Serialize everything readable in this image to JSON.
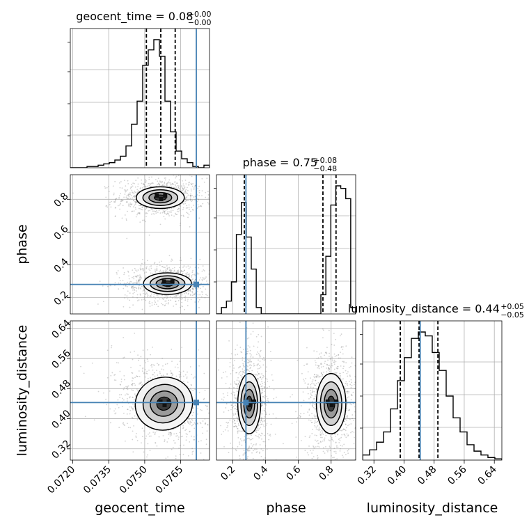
{
  "chart_data": {
    "type": "corner",
    "parameters": [
      "geocent_time",
      "phase",
      "luminosity_distance"
    ],
    "truths": {
      "geocent_time": 0.07715,
      "phase": 0.28,
      "luminosity_distance": 0.443
    },
    "colors": {
      "truth": "#4682b4",
      "hist": "#000000",
      "grid": "#b0b0b0",
      "scatter": "#808080"
    },
    "titles": [
      {
        "param": "geocent_time",
        "text": "geocent_time = 0.08",
        "plus": "+0.00",
        "minus": "−0.00"
      },
      {
        "param": "phase",
        "text": "phase = 0.75",
        "plus": "+0.08",
        "minus": "−0.48"
      },
      {
        "param": "luminosity_distance",
        "text": "luminosity_distance = 0.44",
        "plus": "+0.05",
        "minus": "−0.05"
      }
    ],
    "axes": {
      "geocent_time": {
        "label": "geocent_time",
        "range": [
          0.0719,
          0.0777
        ],
        "ticks": [
          0.072,
          0.0735,
          0.075,
          0.0765
        ],
        "tick_labels": [
          "0.0720",
          "0.0735",
          "0.0750",
          "0.0765"
        ]
      },
      "phase": {
        "label": "phase",
        "range": [
          0.1,
          0.95
        ],
        "ticks": [
          0.2,
          0.4,
          0.6,
          0.8
        ],
        "tick_labels": [
          "0.2",
          "0.4",
          "0.6",
          "0.8"
        ]
      },
      "luminosity_distance": {
        "label": "luminosity_distance",
        "range": [
          0.29,
          0.66
        ],
        "ticks": [
          0.32,
          0.4,
          0.48,
          0.56,
          0.64
        ],
        "tick_labels": [
          "0.32",
          "0.40",
          "0.48",
          "0.56",
          "0.64"
        ]
      }
    },
    "quantiles": {
      "geocent_time": [
        0.07507,
        0.07567,
        0.07627
      ],
      "phase": [
        0.27,
        0.75,
        0.83
      ],
      "luminosity_distance": [
        0.39,
        0.44,
        0.49
      ]
    },
    "histograms": {
      "geocent_time": [
        0,
        0,
        0,
        0.01,
        0.01,
        0.02,
        0.03,
        0.04,
        0.06,
        0.09,
        0.17,
        0.34,
        0.52,
        0.8,
        0.92,
        1.0,
        0.87,
        0.52,
        0.28,
        0.13,
        0.07,
        0.04,
        0.01,
        0,
        0.02
      ],
      "phase": [
        0,
        0.05,
        0.1,
        0.25,
        0.62,
        0.87,
        0.6,
        0.35,
        0.05,
        0,
        0,
        0,
        0,
        0,
        0,
        0,
        0,
        0,
        0,
        0,
        0,
        0.15,
        0.45,
        0.85,
        1.0,
        0.98,
        0.9,
        0.05
      ],
      "luminosity_distance": [
        0.04,
        0.08,
        0.14,
        0.22,
        0.4,
        0.62,
        0.8,
        0.95,
        1.0,
        0.97,
        0.84,
        0.7,
        0.5,
        0.33,
        0.22,
        0.12,
        0.07,
        0.04,
        0.02,
        0.01
      ]
    },
    "blobs": {
      "phase_vs_geocent_time": [
        {
          "cx": 0.07565,
          "cy": 0.81,
          "sx": 0.0005,
          "sy": 0.033,
          "rho": 0,
          "w": 1
        },
        {
          "cx": 0.07595,
          "cy": 0.285,
          "sx": 0.0005,
          "sy": 0.033,
          "rho": 0,
          "w": 1
        }
      ],
      "luminosity_distance_vs_geocent_time": [
        {
          "cx": 0.0758,
          "cy": 0.44,
          "sx": 0.0006,
          "sy": 0.035,
          "rho": -0.35,
          "w": 1
        }
      ],
      "luminosity_distance_vs_phase": [
        {
          "cx": 0.3,
          "cy": 0.44,
          "sx": 0.035,
          "sy": 0.04,
          "rho": 0,
          "w": 1
        },
        {
          "cx": 0.8,
          "cy": 0.44,
          "sx": 0.045,
          "sy": 0.04,
          "rho": 0,
          "w": 1
        }
      ]
    },
    "grid": true
  }
}
